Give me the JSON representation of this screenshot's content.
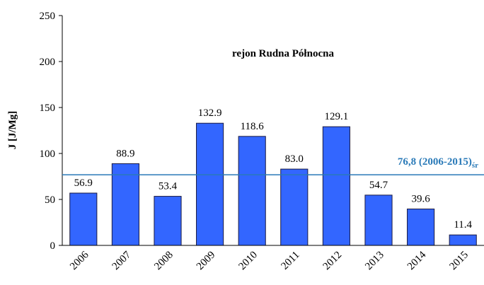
{
  "chart_data": {
    "type": "bar",
    "title": "rejon Rudna Północna",
    "y_label": "J [J/Mg]",
    "categories": [
      "2006",
      "2007",
      "2008",
      "2009",
      "2010",
      "2011",
      "2012",
      "2013",
      "2014",
      "2015"
    ],
    "values": [
      56.9,
      88.9,
      53.4,
      132.9,
      118.6,
      83.0,
      129.1,
      54.7,
      39.6,
      11.4
    ],
    "value_labels": [
      "56.9",
      "88.9",
      "53.4",
      "132.9",
      "118.6",
      "83.0",
      "129.1",
      "54.7",
      "39.6",
      "11.4"
    ],
    "color": "#3366ff",
    "ylim": [
      0,
      250
    ],
    "yticks": [
      0,
      50,
      100,
      150,
      200,
      250
    ],
    "grid": false,
    "reference_line": {
      "value": 76.8,
      "label": "76,8 (2006-2015)",
      "subscript": "śr",
      "color": "#2a7ab8"
    }
  }
}
